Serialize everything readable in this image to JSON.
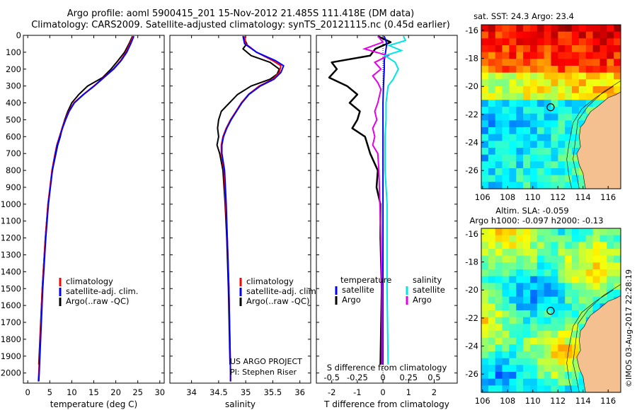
{
  "header": {
    "line1": "Argo profile: aoml 5900415_201 15-Nov-2012 21.485S 111.418E (DM data)",
    "line2": "Climatology: CARS2009. Satellite-adjusted climatology: synTS_20121115.nc (0.45d earlier)"
  },
  "credit": "©IMOS 03-Aug-2017 22:28:19",
  "colors": {
    "climatology": "#ff0000",
    "satellite": "#0000ff",
    "argo": "#000000",
    "sat_sal": "#00e5e5",
    "argo_sal": "#e600e6"
  },
  "chart_data": [
    {
      "type": "line",
      "id": "temperature",
      "xlabel": "temperature (deg C)",
      "ylabel": "",
      "xlim": [
        -1,
        31
      ],
      "ylim": [
        2060,
        0
      ],
      "xticks": [
        "0",
        "5",
        "10",
        "15",
        "20",
        "25",
        "30"
      ],
      "yticks": [
        "0",
        "100",
        "200",
        "300",
        "400",
        "500",
        "600",
        "700",
        "800",
        "900",
        "1000",
        "1100",
        "1200",
        "1300",
        "1400",
        "1500",
        "1600",
        "1700",
        "1800",
        "1900",
        "2000"
      ],
      "legend": [
        "climatology",
        "satellite-adj. clim.",
        "Argo(..raw -QC)"
      ],
      "series": [
        {
          "name": "climatology",
          "depth": [
            5,
            50,
            100,
            150,
            200,
            250,
            300,
            350,
            400,
            450,
            500,
            550,
            600,
            650,
            700,
            800,
            1000,
            1200,
            1500,
            2000,
            2050
          ],
          "values": [
            23.9,
            23.2,
            22.3,
            21.1,
            19.4,
            17.2,
            15.0,
            12.6,
            10.5,
            9.3,
            8.5,
            7.8,
            7.2,
            6.6,
            6.2,
            5.5,
            4.6,
            4.0,
            3.3,
            2.5,
            2.4
          ]
        },
        {
          "name": "satellite-adj. clim.",
          "depth": [
            5,
            50,
            100,
            150,
            200,
            250,
            300,
            350,
            400,
            450,
            500,
            550,
            600,
            650,
            700,
            800,
            1000,
            1200,
            1500,
            2000,
            2050
          ],
          "values": [
            24.1,
            23.4,
            22.5,
            21.2,
            19.5,
            17.3,
            15.1,
            12.7,
            10.6,
            9.4,
            8.6,
            7.9,
            7.3,
            6.7,
            6.3,
            5.6,
            4.7,
            4.1,
            3.4,
            2.6,
            2.5
          ]
        },
        {
          "name": "Argo(..raw -QC)",
          "depth": [
            5,
            50,
            100,
            150,
            200,
            250,
            300,
            350,
            400,
            450,
            500,
            550,
            600,
            650,
            700,
            800,
            1000,
            1200,
            1500,
            1950
          ],
          "values": [
            23.8,
            23.0,
            22.0,
            20.5,
            18.9,
            17.0,
            13.6,
            11.6,
            10.0,
            9.1,
            8.4,
            7.8,
            7.4,
            6.8,
            6.4,
            5.6,
            4.6,
            4.0,
            3.3,
            2.5
          ]
        }
      ]
    },
    {
      "type": "line",
      "id": "salinity",
      "xlabel": "salinity",
      "xlim": [
        33.6,
        36.2
      ],
      "ylim": [
        2060,
        0
      ],
      "xticks": [
        "34",
        "34.5",
        "35",
        "35.5",
        "36"
      ],
      "legend": [
        "climatology",
        "satellite-adj. clim.",
        "Argo(..raw -QC)"
      ],
      "series": [
        {
          "name": "climatology",
          "depth": [
            5,
            50,
            100,
            150,
            180,
            220,
            260,
            300,
            350,
            400,
            450,
            500,
            550,
            600,
            650,
            700,
            800,
            1000,
            1200,
            1500,
            2000,
            2050
          ],
          "values": [
            34.98,
            35.0,
            35.2,
            35.5,
            35.65,
            35.62,
            35.5,
            35.25,
            35.05,
            34.92,
            34.82,
            34.72,
            34.64,
            34.58,
            34.55,
            34.55,
            34.6,
            34.63,
            34.66,
            34.69,
            34.72,
            34.72
          ]
        },
        {
          "name": "satellite-adj. clim.",
          "depth": [
            5,
            50,
            100,
            150,
            180,
            220,
            260,
            300,
            350,
            400,
            450,
            500,
            550,
            600,
            650,
            700,
            800,
            1000,
            1200,
            1500,
            2000,
            2050
          ],
          "values": [
            34.95,
            34.98,
            35.2,
            35.55,
            35.7,
            35.65,
            35.52,
            35.27,
            35.06,
            34.93,
            34.83,
            34.73,
            34.65,
            34.59,
            34.56,
            34.56,
            34.61,
            34.64,
            34.66,
            34.69,
            34.72,
            34.72
          ]
        },
        {
          "name": "Argo(..raw -QC)",
          "depth": [
            5,
            50,
            80,
            120,
            160,
            200,
            230,
            260,
            300,
            350,
            400,
            450,
            500,
            550,
            600,
            650,
            700,
            750,
            800,
            1000,
            1200,
            1500,
            1950
          ],
          "values": [
            34.95,
            35.02,
            34.95,
            35.1,
            35.45,
            35.62,
            35.58,
            35.45,
            35.1,
            34.85,
            34.7,
            34.55,
            34.5,
            34.48,
            34.5,
            34.47,
            34.52,
            34.55,
            34.58,
            34.62,
            34.65,
            34.68,
            34.71
          ]
        }
      ]
    },
    {
      "type": "line",
      "id": "difference",
      "xlabel": "T difference from climatology",
      "xlabel2": "S difference from climatology",
      "xlim": [
        -2.6,
        2.9
      ],
      "ylim": [
        2060,
        0
      ],
      "xticks": [
        "-2",
        "-1",
        "0",
        "1",
        "2"
      ],
      "xticks2": [
        "-0.5",
        "-0.25",
        "0",
        "0.25",
        "0.5"
      ],
      "legend_titles": [
        "temperature",
        "salinity"
      ],
      "legend": [
        "satellite",
        "Argo",
        "satellite",
        "Argo"
      ],
      "series": [
        {
          "name": "temperature satellite",
          "depth": [
            5,
            50,
            100,
            150,
            200,
            300,
            400,
            600,
            800,
            1000,
            1500,
            1950
          ],
          "values": [
            0.05,
            0.15,
            0.1,
            0.05,
            0.05,
            0.02,
            0.0,
            0.0,
            0.0,
            0.0,
            0.0,
            0.0
          ]
        },
        {
          "name": "temperature Argo",
          "depth": [
            5,
            40,
            80,
            120,
            160,
            200,
            250,
            300,
            350,
            400,
            450,
            500,
            550,
            600,
            650,
            700,
            800,
            900,
            1000,
            1200,
            1500,
            1950
          ],
          "values": [
            -0.2,
            0.3,
            -0.3,
            -0.5,
            -2.0,
            -1.8,
            -2.1,
            -1.4,
            -1.0,
            -1.3,
            -0.9,
            -1.0,
            -1.2,
            -0.7,
            -0.6,
            -0.5,
            -0.2,
            -0.25,
            -0.1,
            -0.1,
            -0.05,
            -0.1
          ]
        },
        {
          "name": "salinity satellite",
          "depth": [
            5,
            30,
            60,
            90,
            120,
            160,
            200,
            260,
            300,
            400,
            500,
            600,
            800,
            1000,
            1500,
            1950
          ],
          "values": [
            0.2,
            0.22,
            0.06,
            0.18,
            0.02,
            0.12,
            0.15,
            0.1,
            0.05,
            0.03,
            0.03,
            0.02,
            0.02,
            0.04,
            0.04,
            0.05
          ]
        },
        {
          "name": "salinity Argo",
          "depth": [
            5,
            40,
            80,
            120,
            160,
            200,
            240,
            280,
            320,
            400,
            450,
            500,
            550,
            600,
            650,
            700,
            800,
            1000,
            1200,
            1500,
            1950
          ],
          "values": [
            -0.05,
            0.0,
            -0.18,
            0.05,
            -0.08,
            -0.02,
            -0.1,
            -0.05,
            -0.02,
            -0.05,
            -0.08,
            -0.06,
            -0.1,
            -0.08,
            -0.1,
            -0.05,
            -0.04,
            -0.03,
            -0.02,
            -0.01,
            -0.01
          ]
        }
      ]
    },
    {
      "type": "heatmap",
      "id": "sst_map",
      "title": "sat. SST: 24.3 Argo: 23.4",
      "xticks": [
        "106",
        "108",
        "110",
        "112",
        "114",
        "116"
      ],
      "yticks": [
        "-16",
        "-18",
        "-20",
        "-22",
        "-24",
        "-26"
      ],
      "xlim": [
        105.9,
        117.0
      ],
      "ylim": [
        -27.3,
        -15.6
      ],
      "argo_location": {
        "lon": 111.418,
        "lat": -21.485
      }
    },
    {
      "type": "heatmap",
      "id": "sla_map",
      "title": "Altim. SLA: -0.059",
      "subtitle": "Argo h1000: -0.097 h2000: -0.13",
      "xticks": [
        "106",
        "108",
        "110",
        "112",
        "114",
        "116"
      ],
      "yticks": [
        "-16",
        "-18",
        "-20",
        "-22",
        "-24",
        "-26"
      ],
      "xlim": [
        105.9,
        117.0
      ],
      "ylim": [
        -27.3,
        -15.6
      ],
      "argo_location": {
        "lon": 111.418,
        "lat": -21.485
      }
    }
  ],
  "project": {
    "line1": "US ARGO PROJECT",
    "line2": "PI: Stephen Riser"
  }
}
